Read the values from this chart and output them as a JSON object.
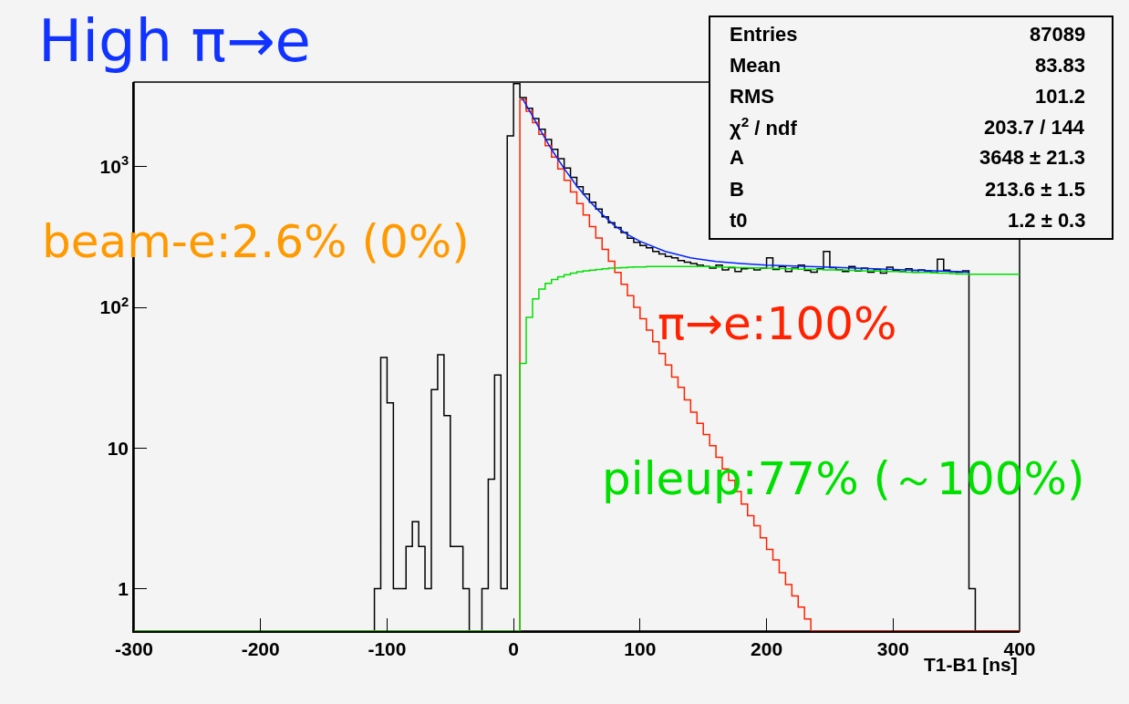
{
  "chart_data": {
    "type": "histogram",
    "title": "High π→e",
    "xlabel": "T1-B1 [ns]",
    "annotations": [
      "beam-e:2.6% (0%)",
      "Entries",
      "87089",
      "Mean",
      "83.83",
      "RMS",
      "101.2",
      "χ$^{2}$ / ndf",
      "203.7 / 144",
      "A",
      "3648 ± 21.3",
      "B",
      "213.6 ± 1.5",
      "t0",
      "1.2 ± 0.3"
    ],
    "bins": [
      -300,
      -295,
      -290,
      -285,
      -280,
      -275,
      -270,
      -265,
      -260,
      -255,
      -250,
      -245,
      -240,
      -235,
      -230,
      -225,
      -220,
      -215,
      -210,
      -205,
      -200,
      -195,
      -190,
      -185,
      -180,
      -175,
      -170,
      -165,
      -160,
      -155,
      -150,
      -145,
      -140,
      -135,
      -130,
      -125,
      -120,
      -115,
      -110,
      -105,
      -100,
      -95,
      -90,
      -85,
      -80,
      -75,
      -70,
      -65,
      -60,
      -55,
      -50,
      -45,
      -40,
      -35,
      -30,
      -25,
      -20,
      -15,
      -10,
      -5,
      0,
      5,
      10,
      15,
      20,
      25,
      30,
      35,
      40,
      45,
      50,
      55,
      60,
      65,
      70,
      75,
      80,
      85,
      90,
      95,
      100,
      105,
      110,
      115,
      120,
      125,
      130,
      135,
      140,
      145,
      150,
      155,
      160,
      165,
      170,
      175,
      180,
      185,
      190,
      195,
      200,
      205,
      210,
      215,
      220,
      225,
      230,
      235,
      240,
      245,
      250,
      255,
      260,
      265,
      270,
      275,
      280,
      285,
      290,
      295,
      300,
      305,
      310,
      315,
      320,
      325,
      330,
      335,
      340,
      345,
      350,
      355,
      360,
      365,
      370,
      375,
      380,
      385,
      390,
      395,
      400
    ],
    "series": [
      {
        "color": "#000000",
        "values": [
          null,
          null,
          null,
          null,
          null,
          null,
          null,
          null,
          null,
          null,
          null,
          null,
          null,
          null,
          null,
          null,
          null,
          null,
          null,
          null,
          null,
          null,
          null,
          null,
          null,
          null,
          null,
          null,
          null,
          null,
          null,
          null,
          null,
          null,
          null,
          null,
          null,
          null,
          1,
          44,
          21,
          1,
          1,
          2,
          3,
          2,
          1,
          26,
          46,
          17,
          2,
          2,
          1,
          null,
          null,
          1,
          6,
          33,
          1,
          1660,
          3900,
          3100,
          2600,
          2200,
          1850,
          1560,
          1330,
          1140,
          980,
          840,
          720,
          640,
          560,
          500,
          440,
          400,
          370,
          340,
          310,
          290,
          275,
          265,
          250,
          240,
          230,
          225,
          215,
          210,
          205,
          200,
          195,
          190,
          200,
          185,
          192,
          180,
          188,
          190,
          185,
          190,
          225,
          186,
          195,
          180,
          190,
          200,
          183,
          178,
          188,
          250,
          192,
          185,
          180,
          195,
          182,
          190,
          178,
          186,
          175,
          193,
          184,
          180,
          188,
          178,
          185,
          182,
          176,
          220,
          184,
          180,
          178,
          182,
          1,
          null,
          null,
          null,
          null,
          null,
          null,
          null
        ]
      },
      {
        "name": "π→e:100%",
        "color": "#ff2200",
        "values": [
          null,
          null,
          null,
          null,
          null,
          null,
          null,
          null,
          null,
          null,
          null,
          null,
          null,
          null,
          null,
          null,
          null,
          null,
          null,
          null,
          null,
          null,
          null,
          null,
          null,
          null,
          null,
          null,
          null,
          null,
          null,
          null,
          null,
          null,
          null,
          null,
          null,
          null,
          null,
          null,
          null,
          null,
          null,
          null,
          null,
          null,
          null,
          null,
          null,
          null,
          null,
          null,
          null,
          null,
          null,
          null,
          null,
          null,
          null,
          null,
          null,
          3000,
          2480,
          2060,
          1700,
          1410,
          1170,
          966,
          800,
          662,
          548,
          454,
          376,
          311,
          258,
          213,
          177,
          146,
          121,
          100,
          83,
          69,
          57,
          47,
          39,
          32,
          27,
          22,
          18,
          15,
          12.5,
          10.4,
          8.6,
          7.1,
          5.9,
          4.9,
          4.0,
          3.3,
          2.8,
          2.3,
          1.9,
          1.6,
          1.3,
          1.07,
          0.89,
          0.74,
          0.61,
          null,
          null,
          null,
          null,
          null,
          null,
          null,
          null,
          null,
          null,
          null,
          null,
          null,
          null,
          null,
          null,
          null,
          null,
          null,
          null,
          null,
          null,
          null,
          null,
          null,
          null,
          null,
          null,
          null,
          null,
          null,
          null,
          null
        ]
      },
      {
        "name": "pileup:77% (～100%)",
        "color": "#00e000",
        "values": [
          null,
          null,
          null,
          null,
          null,
          null,
          null,
          null,
          null,
          null,
          null,
          null,
          null,
          null,
          null,
          null,
          null,
          null,
          null,
          null,
          null,
          null,
          null,
          null,
          null,
          null,
          null,
          null,
          null,
          null,
          null,
          null,
          null,
          null,
          null,
          null,
          null,
          null,
          null,
          null,
          null,
          null,
          null,
          null,
          null,
          null,
          null,
          null,
          null,
          null,
          null,
          null,
          null,
          null,
          null,
          null,
          null,
          null,
          null,
          null,
          null,
          40,
          85,
          115,
          135,
          148,
          158,
          165,
          171,
          175,
          179,
          182,
          184,
          186,
          188,
          190,
          191,
          192,
          193,
          194,
          194,
          195,
          195,
          195,
          195,
          195,
          195,
          195,
          195,
          195,
          195,
          194,
          194,
          193,
          193,
          192,
          192,
          191,
          191,
          190,
          190,
          189,
          189,
          188,
          188,
          187,
          187,
          186,
          186,
          185,
          185,
          184,
          184,
          183,
          183,
          182,
          182,
          181,
          181,
          180,
          180,
          179,
          178,
          178,
          177,
          177,
          176,
          175,
          175,
          174,
          173,
          173,
          172,
          172,
          172,
          172,
          172,
          172,
          172,
          172
        ]
      },
      {
        "type": "line",
        "color": "#0022ff",
        "x": [
          7,
          10,
          15,
          20,
          30,
          40,
          50,
          60,
          70,
          80,
          90,
          100,
          120,
          140,
          160,
          180,
          200,
          250,
          300,
          350,
          360
        ],
        "values": [
          3050,
          2750,
          2300,
          1900,
          1330,
          970,
          730,
          570,
          460,
          380,
          330,
          295,
          250,
          225,
          212,
          205,
          200,
          193,
          186,
          180,
          178
        ]
      }
    ],
    "xlim": [
      -300,
      400
    ],
    "xticks": [
      -300,
      -200,
      -100,
      0,
      100,
      200,
      300,
      400
    ],
    "ylim": [
      0.5,
      4000
    ],
    "yticks": [
      1,
      10,
      {
        "value": 100,
        "label": "10$^{2}$"
      },
      {
        "value": 1000,
        "label": "10$^{3}$"
      }
    ],
    "log": true
  }
}
